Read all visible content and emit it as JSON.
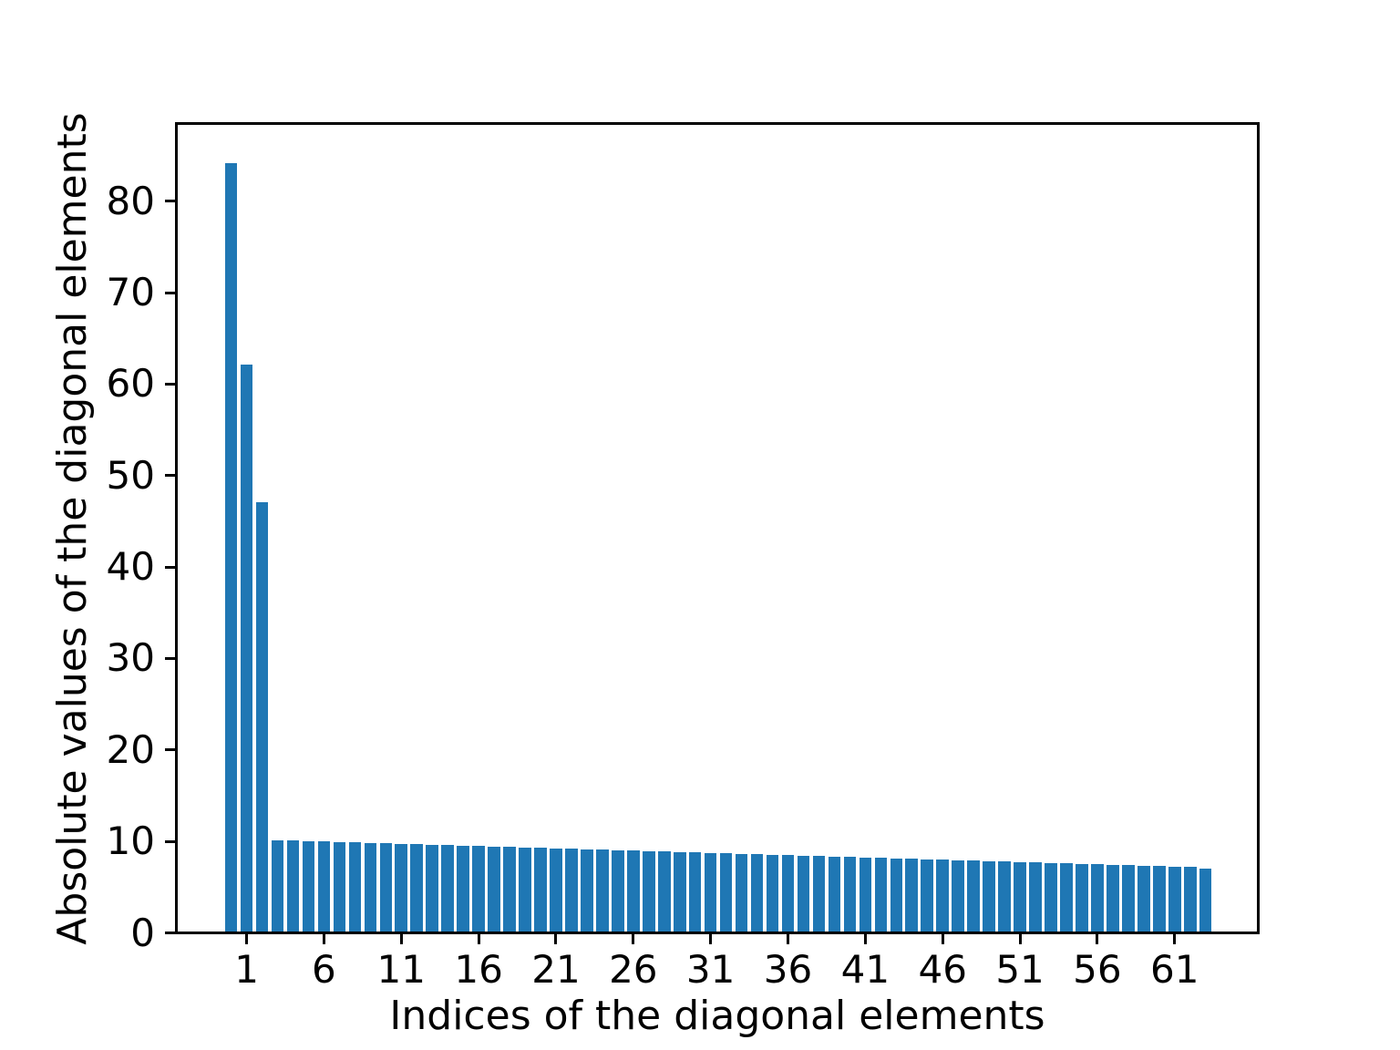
{
  "figure": {
    "background": "#ffffff",
    "text_color": "#000000"
  },
  "chart_data": {
    "type": "bar",
    "title": "",
    "xlabel": "Indices of the diagonal elements",
    "ylabel": "Absolute values of the diagonal elements",
    "bar_color": "#1f77b4",
    "axis_color": "#000000",
    "grid": false,
    "legend": null,
    "bar_width": 0.8,
    "xlim": [
      -3.54,
      66.44
    ],
    "ylim": [
      0,
      88.5
    ],
    "x": [
      0,
      1,
      2,
      3,
      4,
      5,
      6,
      7,
      8,
      9,
      10,
      11,
      12,
      13,
      14,
      15,
      16,
      17,
      18,
      19,
      20,
      21,
      22,
      23,
      24,
      25,
      26,
      27,
      28,
      29,
      30,
      31,
      32,
      33,
      34,
      35,
      36,
      37,
      38,
      39,
      40,
      41,
      42,
      43,
      44,
      45,
      46,
      47,
      48,
      49,
      50,
      51,
      52,
      53,
      54,
      55,
      56,
      57,
      58,
      59,
      60,
      61,
      62,
      63
    ],
    "values": [
      84.0,
      62.0,
      46.9,
      10.0,
      9.95,
      9.9,
      9.85,
      9.8,
      9.75,
      9.7,
      9.65,
      9.6,
      9.55,
      9.5,
      9.45,
      9.4,
      9.35,
      9.3,
      9.25,
      9.2,
      9.15,
      9.1,
      9.05,
      9.0,
      8.95,
      8.9,
      8.85,
      8.8,
      8.75,
      8.7,
      8.65,
      8.6,
      8.55,
      8.5,
      8.45,
      8.4,
      8.35,
      8.3,
      8.25,
      8.2,
      8.15,
      8.1,
      8.05,
      8.0,
      7.95,
      7.9,
      7.85,
      7.8,
      7.75,
      7.7,
      7.65,
      7.6,
      7.55,
      7.5,
      7.45,
      7.4,
      7.35,
      7.3,
      7.25,
      7.2,
      7.15,
      7.1,
      7.05,
      6.9
    ],
    "x_ticks": [
      1,
      6,
      11,
      16,
      21,
      26,
      31,
      36,
      41,
      46,
      51,
      56,
      61
    ],
    "y_ticks": [
      0,
      10,
      20,
      30,
      40,
      50,
      60,
      70,
      80
    ]
  }
}
